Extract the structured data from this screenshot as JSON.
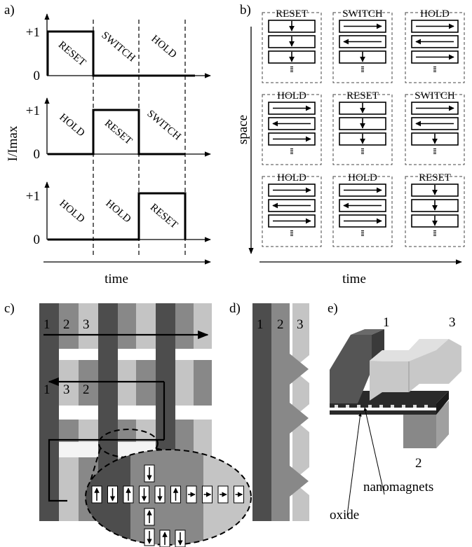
{
  "panel_labels": [
    "a)",
    "b)",
    "c)",
    "d)",
    "e)"
  ],
  "panel_a": {
    "y_label": "I/Imax",
    "x_label": "time",
    "tick_high": "+1",
    "tick_low": "0",
    "rows": [
      [
        "RESET",
        "SWITCH",
        "HOLD"
      ],
      [
        "HOLD",
        "RESET",
        "SWITCH"
      ],
      [
        "HOLD",
        "HOLD",
        "RESET"
      ]
    ]
  },
  "panel_b": {
    "y_label": "space",
    "x_label": "time",
    "grid": [
      [
        {
          "label": "RESET",
          "cells": [
            "down",
            "down",
            "down"
          ]
        },
        {
          "label": "SWITCH",
          "cells": [
            "right",
            "left",
            "down"
          ]
        },
        {
          "label": "HOLD",
          "cells": [
            "right",
            "left",
            "right"
          ]
        }
      ],
      [
        {
          "label": "HOLD",
          "cells": [
            "right",
            "left",
            "right"
          ]
        },
        {
          "label": "RESET",
          "cells": [
            "down",
            "down",
            "down"
          ]
        },
        {
          "label": "SWITCH",
          "cells": [
            "right",
            "left",
            "down"
          ]
        }
      ],
      [
        {
          "label": "HOLD",
          "cells": [
            "right",
            "left",
            "right"
          ]
        },
        {
          "label": "HOLD",
          "cells": [
            "right",
            "left",
            "right"
          ]
        },
        {
          "label": "RESET",
          "cells": [
            "down",
            "down",
            "down"
          ]
        }
      ]
    ]
  },
  "panel_c": {
    "top_numbers": [
      "1",
      "2",
      "3"
    ],
    "middle_numbers": [
      "1",
      "3",
      "2"
    ]
  },
  "panel_d": {
    "numbers": [
      "1",
      "2",
      "3"
    ]
  },
  "panel_e": {
    "numbers": [
      "1",
      "3",
      "2"
    ],
    "nanomagnets_label": "nanomagnets",
    "oxide_label": "oxide"
  },
  "colors": {
    "dark": "#4d4d4d",
    "mid": "#888888",
    "light": "#c4c4c4",
    "cream": "#f4f4f4"
  }
}
